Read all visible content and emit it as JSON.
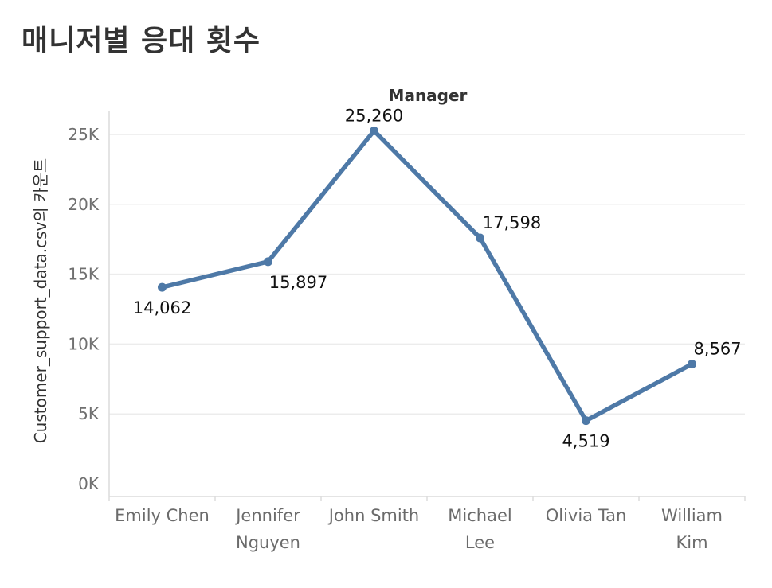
{
  "page": {
    "title": "매니저별 응대 횟수"
  },
  "chart_data": {
    "type": "line",
    "title": "매니저별 응대 횟수",
    "column_header": "Manager",
    "ylabel": "Customer_support_data.csv의 카운트",
    "xlabel": "",
    "categories": [
      "Emily Chen",
      "Jennifer Nguyen",
      "John Smith",
      "Michael Lee",
      "Olivia Tan",
      "William Kim"
    ],
    "category_lines": [
      [
        "Emily Chen"
      ],
      [
        "Jennifer",
        "Nguyen"
      ],
      [
        "John Smith"
      ],
      [
        "Michael",
        "Lee"
      ],
      [
        "Olivia Tan"
      ],
      [
        "William",
        "Kim"
      ]
    ],
    "values": [
      14062,
      15897,
      25260,
      17598,
      4519,
      8567
    ],
    "value_labels": [
      "14,062",
      "15,897",
      "25,260",
      "17,598",
      "4,519",
      "8,567"
    ],
    "label_positions": [
      "below",
      "below",
      "above",
      "above",
      "below",
      "above"
    ],
    "yticks": [
      0,
      5000,
      10000,
      15000,
      20000,
      25000
    ],
    "ytick_labels": [
      "0K",
      "5K",
      "10K",
      "15K",
      "20K",
      "25K"
    ],
    "ylim": [
      0,
      25260
    ],
    "grid": true,
    "legend": "none",
    "line_color": "#4e79a7"
  }
}
